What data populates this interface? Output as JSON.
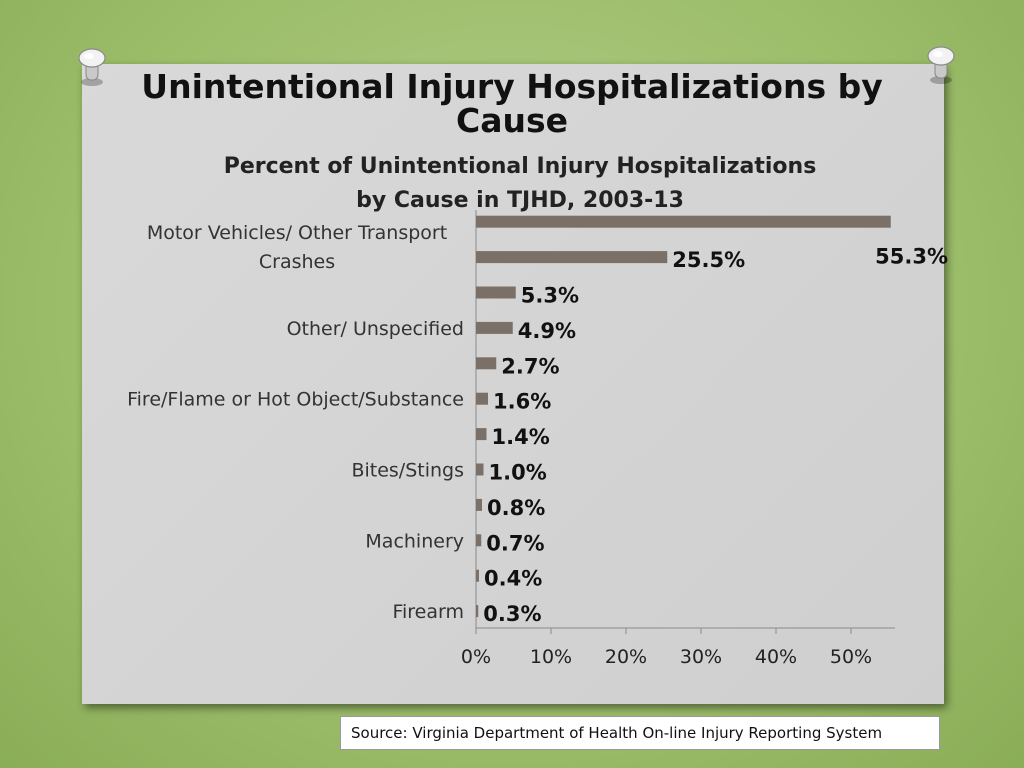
{
  "slide": {
    "title_line1": "Unintentional Injury Hospitalizations by",
    "title_line2": "Cause"
  },
  "source": "Source: Virginia Department of Health On-line Injury Reporting System",
  "chart_data": {
    "type": "bar",
    "orientation": "horizontal",
    "title_line1": "Percent of Unintentional Injury Hospitalizations",
    "title_line2": "by Cause in TJHD, 2003-13",
    "categories": [
      "",
      "Motor Vehicles/ Other Transport Crashes",
      "",
      "Other/ Unspecified",
      "",
      "Fire/Flame or Hot Object/Substance",
      "",
      "Bites/Stings",
      "",
      "Machinery",
      "",
      "Firearm"
    ],
    "values": [
      55.3,
      25.5,
      5.3,
      4.9,
      2.7,
      1.6,
      1.4,
      1.0,
      0.8,
      0.7,
      0.4,
      0.3
    ],
    "data_labels": [
      "55.3%",
      "25.5%",
      "5.3%",
      "4.9%",
      "2.7%",
      "1.6%",
      "1.4%",
      "1.0%",
      "0.8%",
      "0.7%",
      "0.4%",
      "0.3%"
    ],
    "x_ticks": [
      "0%",
      "10%",
      "20%",
      "30%",
      "40%",
      "50%"
    ],
    "xlim": [
      0,
      55
    ],
    "bar_color": "#7a7068",
    "grid": false,
    "legend": "none"
  }
}
